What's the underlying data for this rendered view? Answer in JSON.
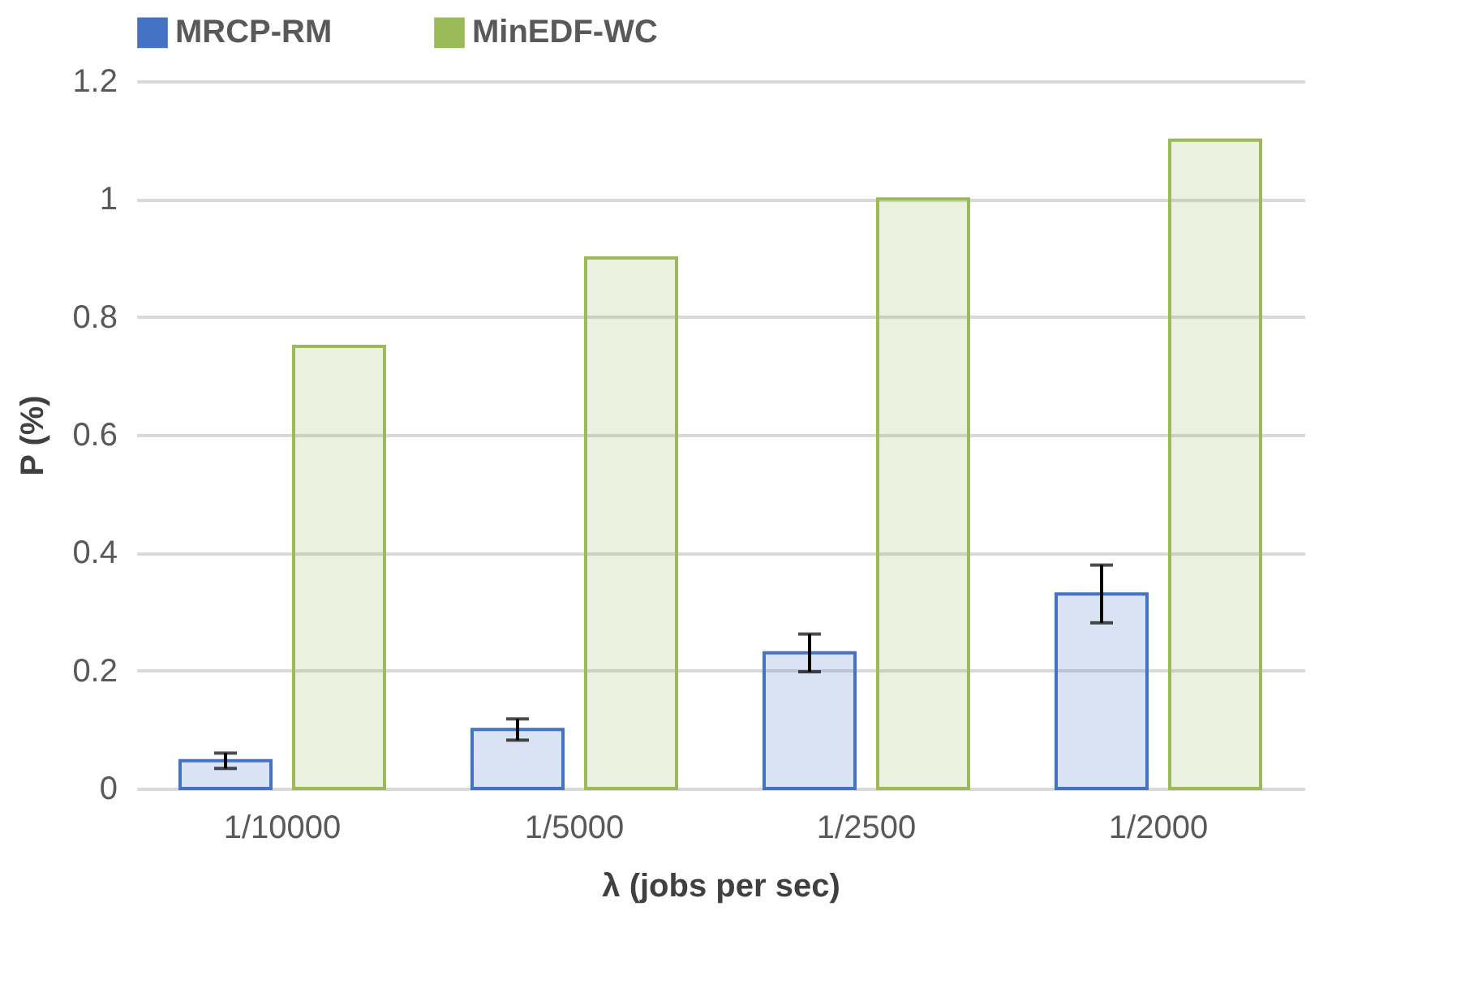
{
  "chart_data": {
    "type": "bar",
    "xlabel": "λ (jobs per sec)",
    "ylabel": "P (%)",
    "categories": [
      "1/10000",
      "1/5000",
      "1/2500",
      "1/2000"
    ],
    "series": [
      {
        "name": "MRCP-RM",
        "color": "#4472c4",
        "values": [
          0.047,
          0.1,
          0.23,
          0.33
        ],
        "errors": [
          0.013,
          0.018,
          0.032,
          0.049
        ]
      },
      {
        "name": "MinEDF-WC",
        "color": "#9bbb59",
        "values": [
          0.75,
          0.9,
          1.0,
          1.1
        ]
      }
    ],
    "ylim": [
      0,
      1.2
    ],
    "yticks": [
      0,
      0.2,
      0.4,
      0.6,
      0.8,
      1,
      1.2
    ],
    "grid": "y",
    "legend": "top"
  }
}
